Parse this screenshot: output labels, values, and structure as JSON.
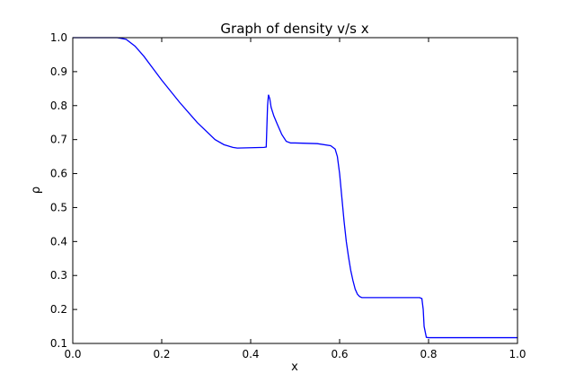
{
  "chart_data": {
    "type": "line",
    "title": "Graph of density v/s x",
    "xlabel": "x",
    "ylabel": "ρ",
    "xlim": [
      0.0,
      1.0
    ],
    "ylim": [
      0.1,
      1.0
    ],
    "xticks": [
      "0.0",
      "0.2",
      "0.4",
      "0.6",
      "0.8",
      "1.0"
    ],
    "yticks": [
      "0.1",
      "0.2",
      "0.3",
      "0.4",
      "0.5",
      "0.6",
      "0.7",
      "0.8",
      "0.9",
      "1.0"
    ],
    "grid": false,
    "line_color": "#0000ff",
    "series": [
      {
        "x": [
          0.0,
          0.1,
          0.12,
          0.14,
          0.16,
          0.18,
          0.2,
          0.24,
          0.28,
          0.32,
          0.34,
          0.36,
          0.37,
          0.4,
          0.43,
          0.435,
          0.438,
          0.44,
          0.443,
          0.446,
          0.452,
          0.46,
          0.47,
          0.48,
          0.49,
          0.5,
          0.55,
          0.58,
          0.59,
          0.595,
          0.6,
          0.605,
          0.61,
          0.615,
          0.62,
          0.625,
          0.63,
          0.635,
          0.64,
          0.645,
          0.65,
          0.66,
          0.7,
          0.75,
          0.78,
          0.785,
          0.788,
          0.79,
          0.795,
          0.8,
          0.9,
          1.0
        ],
        "y": [
          1.0,
          1.0,
          0.995,
          0.975,
          0.945,
          0.91,
          0.875,
          0.81,
          0.75,
          0.7,
          0.685,
          0.677,
          0.675,
          0.676,
          0.677,
          0.678,
          0.8,
          0.832,
          0.82,
          0.795,
          0.77,
          0.745,
          0.715,
          0.695,
          0.69,
          0.69,
          0.688,
          0.682,
          0.672,
          0.65,
          0.6,
          0.53,
          0.46,
          0.4,
          0.355,
          0.315,
          0.285,
          0.26,
          0.245,
          0.238,
          0.235,
          0.235,
          0.235,
          0.235,
          0.235,
          0.232,
          0.2,
          0.15,
          0.118,
          0.117,
          0.117,
          0.117
        ]
      }
    ]
  }
}
